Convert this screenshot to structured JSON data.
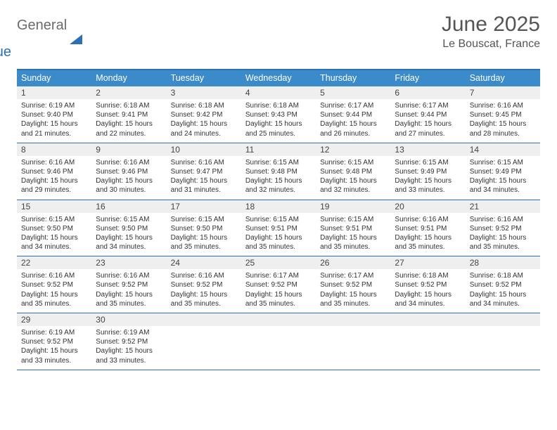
{
  "logo": {
    "word1": "General",
    "word2": "Blue"
  },
  "title": "June 2025",
  "location": "Le Bouscat, France",
  "day_headers": [
    "Sunday",
    "Monday",
    "Tuesday",
    "Wednesday",
    "Thursday",
    "Friday",
    "Saturday"
  ],
  "colors": {
    "header_bg": "#3b8bca",
    "rule": "#2d6fb5",
    "daynum_bg": "#efefef",
    "text": "#333333",
    "title_text": "#555555"
  },
  "weeks": [
    [
      {
        "n": "1",
        "sunrise": "6:19 AM",
        "sunset": "9:40 PM",
        "daylight": "15 hours and 21 minutes."
      },
      {
        "n": "2",
        "sunrise": "6:18 AM",
        "sunset": "9:41 PM",
        "daylight": "15 hours and 22 minutes."
      },
      {
        "n": "3",
        "sunrise": "6:18 AM",
        "sunset": "9:42 PM",
        "daylight": "15 hours and 24 minutes."
      },
      {
        "n": "4",
        "sunrise": "6:18 AM",
        "sunset": "9:43 PM",
        "daylight": "15 hours and 25 minutes."
      },
      {
        "n": "5",
        "sunrise": "6:17 AM",
        "sunset": "9:44 PM",
        "daylight": "15 hours and 26 minutes."
      },
      {
        "n": "6",
        "sunrise": "6:17 AM",
        "sunset": "9:44 PM",
        "daylight": "15 hours and 27 minutes."
      },
      {
        "n": "7",
        "sunrise": "6:16 AM",
        "sunset": "9:45 PM",
        "daylight": "15 hours and 28 minutes."
      }
    ],
    [
      {
        "n": "8",
        "sunrise": "6:16 AM",
        "sunset": "9:46 PM",
        "daylight": "15 hours and 29 minutes."
      },
      {
        "n": "9",
        "sunrise": "6:16 AM",
        "sunset": "9:46 PM",
        "daylight": "15 hours and 30 minutes."
      },
      {
        "n": "10",
        "sunrise": "6:16 AM",
        "sunset": "9:47 PM",
        "daylight": "15 hours and 31 minutes."
      },
      {
        "n": "11",
        "sunrise": "6:15 AM",
        "sunset": "9:48 PM",
        "daylight": "15 hours and 32 minutes."
      },
      {
        "n": "12",
        "sunrise": "6:15 AM",
        "sunset": "9:48 PM",
        "daylight": "15 hours and 32 minutes."
      },
      {
        "n": "13",
        "sunrise": "6:15 AM",
        "sunset": "9:49 PM",
        "daylight": "15 hours and 33 minutes."
      },
      {
        "n": "14",
        "sunrise": "6:15 AM",
        "sunset": "9:49 PM",
        "daylight": "15 hours and 34 minutes."
      }
    ],
    [
      {
        "n": "15",
        "sunrise": "6:15 AM",
        "sunset": "9:50 PM",
        "daylight": "15 hours and 34 minutes."
      },
      {
        "n": "16",
        "sunrise": "6:15 AM",
        "sunset": "9:50 PM",
        "daylight": "15 hours and 34 minutes."
      },
      {
        "n": "17",
        "sunrise": "6:15 AM",
        "sunset": "9:50 PM",
        "daylight": "15 hours and 35 minutes."
      },
      {
        "n": "18",
        "sunrise": "6:15 AM",
        "sunset": "9:51 PM",
        "daylight": "15 hours and 35 minutes."
      },
      {
        "n": "19",
        "sunrise": "6:15 AM",
        "sunset": "9:51 PM",
        "daylight": "15 hours and 35 minutes."
      },
      {
        "n": "20",
        "sunrise": "6:16 AM",
        "sunset": "9:51 PM",
        "daylight": "15 hours and 35 minutes."
      },
      {
        "n": "21",
        "sunrise": "6:16 AM",
        "sunset": "9:52 PM",
        "daylight": "15 hours and 35 minutes."
      }
    ],
    [
      {
        "n": "22",
        "sunrise": "6:16 AM",
        "sunset": "9:52 PM",
        "daylight": "15 hours and 35 minutes."
      },
      {
        "n": "23",
        "sunrise": "6:16 AM",
        "sunset": "9:52 PM",
        "daylight": "15 hours and 35 minutes."
      },
      {
        "n": "24",
        "sunrise": "6:16 AM",
        "sunset": "9:52 PM",
        "daylight": "15 hours and 35 minutes."
      },
      {
        "n": "25",
        "sunrise": "6:17 AM",
        "sunset": "9:52 PM",
        "daylight": "15 hours and 35 minutes."
      },
      {
        "n": "26",
        "sunrise": "6:17 AM",
        "sunset": "9:52 PM",
        "daylight": "15 hours and 35 minutes."
      },
      {
        "n": "27",
        "sunrise": "6:18 AM",
        "sunset": "9:52 PM",
        "daylight": "15 hours and 34 minutes."
      },
      {
        "n": "28",
        "sunrise": "6:18 AM",
        "sunset": "9:52 PM",
        "daylight": "15 hours and 34 minutes."
      }
    ],
    [
      {
        "n": "29",
        "sunrise": "6:19 AM",
        "sunset": "9:52 PM",
        "daylight": "15 hours and 33 minutes."
      },
      {
        "n": "30",
        "sunrise": "6:19 AM",
        "sunset": "9:52 PM",
        "daylight": "15 hours and 33 minutes."
      },
      {
        "empty": true
      },
      {
        "empty": true
      },
      {
        "empty": true
      },
      {
        "empty": true
      },
      {
        "empty": true
      }
    ]
  ],
  "labels": {
    "sunrise": "Sunrise: ",
    "sunset": "Sunset: ",
    "daylight": "Daylight: "
  }
}
